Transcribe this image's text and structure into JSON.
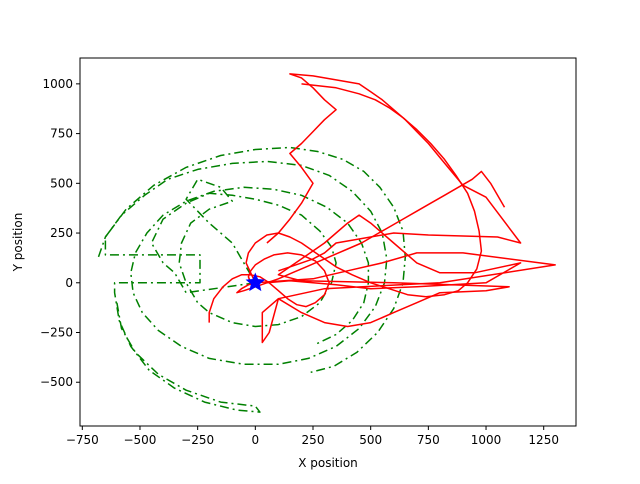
{
  "chart_data": {
    "type": "line",
    "title": "",
    "xlabel": "X position",
    "ylabel": "Y position",
    "xlim": [
      -760,
      1390
    ],
    "ylim": [
      -720,
      1130
    ],
    "xticks": [
      -750,
      -500,
      -250,
      0,
      250,
      500,
      750,
      1000,
      1250
    ],
    "yticks": [
      -500,
      -250,
      0,
      250,
      500,
      750,
      1000
    ],
    "xtick_labels": [
      "−750",
      "−500",
      "−250",
      "0",
      "250",
      "500",
      "750",
      "1000",
      "1250"
    ],
    "ytick_labels": [
      "−500",
      "−250",
      "0",
      "250",
      "500",
      "750",
      "1000"
    ],
    "grid": false,
    "legend": "none",
    "series": [
      {
        "color": "#008000",
        "linestyle": "dashdot",
        "points": [
          [
            0,
            0
          ],
          [
            -300,
            -50
          ],
          [
            -350,
            50
          ],
          [
            -400,
            100
          ],
          [
            -450,
            200
          ],
          [
            -400,
            320
          ],
          [
            -300,
            400
          ],
          [
            -200,
            450
          ],
          [
            -100,
            440
          ],
          [
            0,
            420
          ],
          [
            100,
            390
          ],
          [
            200,
            340
          ],
          [
            280,
            260
          ],
          [
            330,
            180
          ],
          [
            350,
            100
          ],
          [
            330,
            0
          ],
          [
            280,
            -100
          ],
          [
            200,
            -170
          ],
          [
            100,
            -210
          ],
          [
            0,
            -220
          ],
          [
            -100,
            -200
          ],
          [
            -200,
            -150
          ],
          [
            -250,
            -100
          ],
          [
            -300,
            0
          ],
          [
            -330,
            100
          ],
          [
            -320,
            200
          ],
          [
            -280,
            300
          ],
          [
            -200,
            370
          ],
          [
            -100,
            410
          ],
          [
            -150,
            480
          ],
          [
            -250,
            520
          ],
          [
            -300,
            420
          ],
          [
            -200,
            300
          ],
          [
            -100,
            200
          ],
          [
            -50,
            100
          ],
          [
            0,
            0
          ]
        ]
      },
      {
        "color": "#008000",
        "linestyle": "dashdot",
        "points": [
          [
            -680,
            130
          ],
          [
            -650,
            230
          ],
          [
            -580,
            340
          ],
          [
            -480,
            440
          ],
          [
            -380,
            520
          ],
          [
            -250,
            570
          ],
          [
            -100,
            600
          ],
          [
            50,
            610
          ],
          [
            200,
            590
          ],
          [
            320,
            540
          ],
          [
            420,
            460
          ],
          [
            500,
            360
          ],
          [
            550,
            250
          ],
          [
            570,
            120
          ],
          [
            560,
            0
          ],
          [
            520,
            -120
          ],
          [
            450,
            -230
          ],
          [
            350,
            -320
          ],
          [
            230,
            -380
          ],
          [
            100,
            -410
          ],
          [
            -50,
            -410
          ],
          [
            -200,
            -380
          ],
          [
            -320,
            -320
          ],
          [
            -420,
            -240
          ],
          [
            -490,
            -150
          ],
          [
            -530,
            -50
          ],
          [
            -540,
            50
          ],
          [
            -520,
            150
          ],
          [
            -470,
            250
          ],
          [
            -400,
            340
          ],
          [
            -300,
            410
          ],
          [
            -180,
            460
          ],
          [
            -50,
            480
          ],
          [
            80,
            470
          ],
          [
            200,
            440
          ],
          [
            310,
            380
          ],
          [
            400,
            300
          ],
          [
            460,
            200
          ],
          [
            490,
            100
          ],
          [
            490,
            0
          ],
          [
            470,
            -100
          ],
          [
            420,
            -190
          ],
          [
            350,
            -260
          ],
          [
            260,
            -310
          ]
        ]
      },
      {
        "color": "#008000",
        "linestyle": "dashdot",
        "points": [
          [
            -600,
            -100
          ],
          [
            -580,
            -230
          ],
          [
            -520,
            -350
          ],
          [
            -420,
            -460
          ],
          [
            -300,
            -540
          ],
          [
            -150,
            -600
          ],
          [
            0,
            -620
          ],
          [
            20,
            -650
          ],
          [
            -80,
            -640
          ],
          [
            -220,
            -600
          ],
          [
            -350,
            -530
          ],
          [
            -460,
            -440
          ],
          [
            -540,
            -320
          ],
          [
            -590,
            -190
          ],
          [
            -610,
            -50
          ],
          [
            -610,
            0
          ],
          [
            -240,
            0
          ],
          [
            -240,
            140
          ],
          [
            -650,
            140
          ],
          [
            -650,
            230
          ],
          [
            -560,
            370
          ],
          [
            -440,
            490
          ],
          [
            -300,
            580
          ],
          [
            -150,
            640
          ],
          [
            0,
            670
          ],
          [
            150,
            680
          ],
          [
            270,
            660
          ],
          [
            380,
            620
          ],
          [
            470,
            560
          ],
          [
            540,
            480
          ],
          [
            600,
            380
          ],
          [
            640,
            260
          ],
          [
            650,
            130
          ],
          [
            640,
            0
          ],
          [
            600,
            -130
          ],
          [
            530,
            -250
          ],
          [
            440,
            -350
          ],
          [
            340,
            -420
          ],
          [
            240,
            -450
          ]
        ]
      },
      {
        "color": "#ff0000",
        "linestyle": "solid",
        "points": [
          [
            0,
            0
          ],
          [
            250,
            20
          ],
          [
            400,
            60
          ],
          [
            550,
            100
          ],
          [
            700,
            150
          ],
          [
            900,
            150
          ],
          [
            1300,
            90
          ],
          [
            800,
            0
          ],
          [
            300,
            -30
          ],
          [
            100,
            -80
          ],
          [
            30,
            -150
          ],
          [
            30,
            -300
          ],
          [
            60,
            -250
          ],
          [
            100,
            -80
          ],
          [
            200,
            -150
          ],
          [
            300,
            -200
          ],
          [
            400,
            -220
          ],
          [
            500,
            -200
          ],
          [
            600,
            -150
          ],
          [
            700,
            -100
          ],
          [
            800,
            -50
          ],
          [
            1000,
            -40
          ],
          [
            1100,
            -20
          ],
          [
            600,
            0
          ],
          [
            200,
            10
          ],
          [
            100,
            40
          ],
          [
            200,
            120
          ],
          [
            300,
            200
          ],
          [
            350,
            250
          ],
          [
            400,
            300
          ],
          [
            450,
            340
          ],
          [
            500,
            300
          ],
          [
            600,
            200
          ],
          [
            700,
            100
          ],
          [
            800,
            50
          ],
          [
            950,
            50
          ],
          [
            1150,
            100
          ],
          [
            1000,
            0
          ],
          [
            700,
            -20
          ],
          [
            500,
            -30
          ],
          [
            350,
            -10
          ],
          [
            250,
            0
          ],
          [
            150,
            10
          ],
          [
            50,
            0
          ]
        ]
      },
      {
        "color": "#ff0000",
        "linestyle": "solid",
        "points": [
          [
            50,
            200
          ],
          [
            100,
            250
          ],
          [
            150,
            320
          ],
          [
            200,
            400
          ],
          [
            250,
            500
          ],
          [
            200,
            580
          ],
          [
            150,
            650
          ],
          [
            200,
            700
          ],
          [
            250,
            760
          ],
          [
            300,
            820
          ],
          [
            350,
            870
          ],
          [
            300,
            920
          ],
          [
            250,
            980
          ],
          [
            200,
            1030
          ],
          [
            150,
            1050
          ],
          [
            250,
            1040
          ],
          [
            350,
            1020
          ],
          [
            450,
            1000
          ],
          [
            500,
            960
          ],
          [
            550,
            920
          ],
          [
            600,
            870
          ],
          [
            650,
            820
          ],
          [
            700,
            760
          ],
          [
            750,
            700
          ],
          [
            800,
            630
          ],
          [
            850,
            560
          ],
          [
            900,
            490
          ],
          [
            1000,
            430
          ],
          [
            1150,
            200
          ],
          [
            1050,
            230
          ],
          [
            750,
            240
          ],
          [
            600,
            250
          ],
          [
            450,
            220
          ],
          [
            350,
            200
          ],
          [
            300,
            150
          ],
          [
            250,
            120
          ],
          [
            200,
            100
          ],
          [
            150,
            80
          ],
          [
            100,
            60
          ]
        ]
      },
      {
        "color": "#ff0000",
        "linestyle": "solid",
        "points": [
          [
            200,
            1000
          ],
          [
            350,
            980
          ],
          [
            450,
            950
          ],
          [
            520,
            920
          ],
          [
            580,
            880
          ],
          [
            640,
            830
          ],
          [
            700,
            770
          ],
          [
            760,
            700
          ],
          [
            820,
            620
          ],
          [
            870,
            540
          ],
          [
            920,
            450
          ],
          [
            950,
            360
          ],
          [
            970,
            260
          ],
          [
            980,
            160
          ],
          [
            960,
            70
          ],
          [
            920,
            0
          ],
          [
            880,
            -40
          ],
          [
            820,
            -60
          ],
          [
            740,
            -70
          ],
          [
            660,
            -60
          ],
          [
            580,
            -30
          ],
          [
            500,
            0
          ],
          [
            420,
            40
          ],
          [
            350,
            80
          ],
          [
            300,
            120
          ],
          [
            250,
            160
          ],
          [
            200,
            200
          ],
          [
            150,
            230
          ],
          [
            100,
            250
          ],
          [
            50,
            240
          ],
          [
            0,
            200
          ],
          [
            -30,
            150
          ],
          [
            -40,
            100
          ],
          [
            -20,
            50
          ],
          [
            0,
            0
          ]
        ]
      },
      {
        "color": "#ff0000",
        "linestyle": "solid",
        "points": [
          [
            1080,
            380
          ],
          [
            1020,
            500
          ],
          [
            980,
            560
          ],
          [
            940,
            520
          ],
          [
            880,
            480
          ],
          [
            820,
            440
          ],
          [
            760,
            400
          ],
          [
            700,
            360
          ],
          [
            640,
            320
          ],
          [
            580,
            280
          ],
          [
            520,
            240
          ],
          [
            460,
            200
          ],
          [
            400,
            170
          ],
          [
            340,
            140
          ],
          [
            280,
            110
          ],
          [
            220,
            80
          ],
          [
            160,
            50
          ],
          [
            100,
            20
          ],
          [
            50,
            0
          ],
          [
            0,
            -20
          ],
          [
            -50,
            -40
          ],
          [
            -80,
            -50
          ],
          [
            -60,
            -30
          ],
          [
            -30,
            -10
          ],
          [
            0,
            0
          ]
        ]
      },
      {
        "color": "#ff0000",
        "linestyle": "solid",
        "points": [
          [
            -200,
            -200
          ],
          [
            -200,
            -150
          ],
          [
            -180,
            -80
          ],
          [
            -140,
            -20
          ],
          [
            -100,
            20
          ],
          [
            -60,
            40
          ],
          [
            -20,
            40
          ],
          [
            20,
            30
          ],
          [
            60,
            0
          ],
          [
            100,
            -40
          ],
          [
            140,
            -80
          ],
          [
            180,
            -110
          ],
          [
            220,
            -120
          ],
          [
            260,
            -100
          ],
          [
            300,
            -60
          ],
          [
            320,
            0
          ],
          [
            300,
            60
          ],
          [
            260,
            110
          ],
          [
            200,
            140
          ],
          [
            140,
            150
          ],
          [
            80,
            140
          ],
          [
            40,
            120
          ],
          [
            0,
            90
          ],
          [
            -20,
            60
          ],
          [
            -30,
            30
          ],
          [
            -20,
            0
          ],
          [
            0,
            -10
          ]
        ]
      }
    ],
    "markers": [
      {
        "type": "star",
        "x": 0,
        "y": 0,
        "color": "#0000ff",
        "size": 18
      }
    ]
  }
}
